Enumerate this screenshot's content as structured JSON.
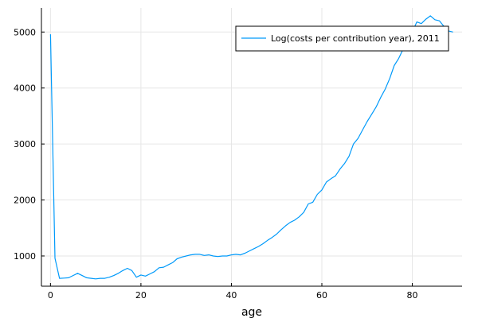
{
  "chart_data": {
    "type": "line",
    "title": "",
    "xlabel": "age",
    "ylabel": "",
    "xlim": [
      -2,
      91
    ],
    "ylim": [
      460,
      5430
    ],
    "xticks": [
      0,
      20,
      40,
      60,
      80
    ],
    "yticks": [
      1000,
      2000,
      3000,
      4000,
      5000
    ],
    "grid": true,
    "legend_position": "top-right",
    "series": [
      {
        "name": "Log(costs per contribution year), 2011",
        "color": "#009AFA",
        "x": [
          0,
          1,
          2,
          3,
          4,
          5,
          6,
          7,
          8,
          9,
          10,
          11,
          12,
          13,
          14,
          15,
          16,
          17,
          18,
          19,
          20,
          21,
          22,
          23,
          24,
          25,
          26,
          27,
          28,
          29,
          30,
          31,
          32,
          33,
          34,
          35,
          36,
          37,
          38,
          39,
          40,
          41,
          42,
          43,
          44,
          45,
          46,
          47,
          48,
          49,
          50,
          51,
          52,
          53,
          54,
          55,
          56,
          57,
          58,
          59,
          60,
          61,
          62,
          63,
          64,
          65,
          66,
          67,
          68,
          69,
          70,
          71,
          72,
          73,
          74,
          75,
          76,
          77,
          78,
          79,
          80,
          81,
          82,
          83,
          84,
          85,
          86,
          87,
          88,
          89
        ],
        "values": [
          4960,
          960,
          600,
          605,
          610,
          650,
          690,
          650,
          610,
          600,
          590,
          600,
          600,
          620,
          650,
          690,
          740,
          780,
          740,
          620,
          660,
          640,
          680,
          720,
          790,
          800,
          840,
          880,
          950,
          980,
          1000,
          1020,
          1030,
          1030,
          1010,
          1020,
          1000,
          990,
          1000,
          1000,
          1020,
          1030,
          1020,
          1050,
          1090,
          1130,
          1170,
          1220,
          1280,
          1330,
          1390,
          1470,
          1540,
          1600,
          1640,
          1700,
          1780,
          1930,
          1960,
          2100,
          2180,
          2320,
          2380,
          2430,
          2550,
          2650,
          2780,
          3000,
          3100,
          3250,
          3400,
          3530,
          3660,
          3830,
          3980,
          4170,
          4400,
          4530,
          4700,
          4880,
          5000,
          5180,
          5150,
          5230,
          5290,
          5220,
          5200,
          5100,
          5020,
          5000
        ]
      }
    ]
  }
}
